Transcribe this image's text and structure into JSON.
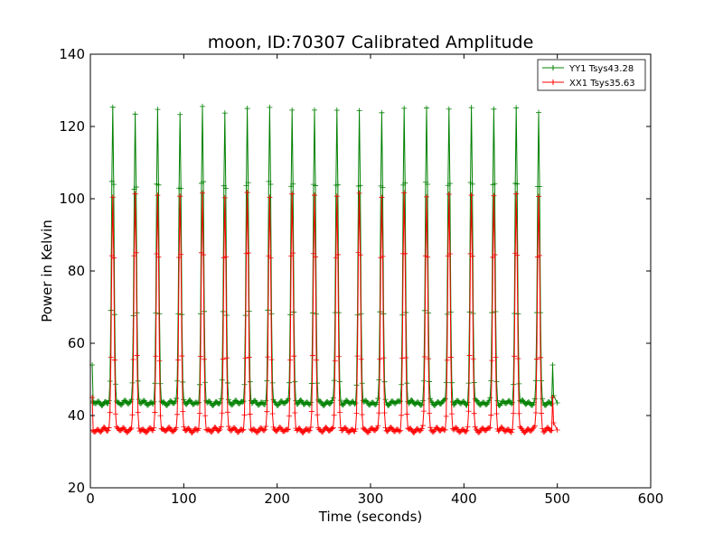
{
  "chart_data": {
    "type": "line",
    "title": "moon, ID:70307 Calibrated Amplitude",
    "xlabel": "Time (seconds)",
    "ylabel": "Power in Kelvin",
    "xlim": [
      0,
      600
    ],
    "ylim": [
      20,
      140
    ],
    "xticks": [
      0,
      100,
      200,
      300,
      400,
      500,
      600
    ],
    "yticks": [
      20,
      40,
      60,
      80,
      100,
      120,
      140
    ],
    "grid": false,
    "legend_position": "top-right",
    "peak_times": [
      24,
      48,
      72,
      96,
      120,
      144,
      168,
      192,
      216,
      240,
      264,
      288,
      312,
      336,
      360,
      384,
      408,
      432,
      456,
      480
    ],
    "series": [
      {
        "name": "YY1 Tsys43.28",
        "color": "#008000",
        "baseline": 43.5,
        "peak_values": [
          125,
          124,
          124,
          124,
          125,
          124,
          125,
          125,
          125,
          124,
          125,
          124,
          124,
          125,
          125,
          125,
          125,
          125,
          125,
          124
        ],
        "edge_points": [
          [
            2,
            54
          ],
          [
            495,
            54
          ],
          [
            500,
            43.5
          ]
        ]
      },
      {
        "name": "XX1 Tsys35.63",
        "color": "#ff0000",
        "baseline": 36,
        "peak_values": [
          101,
          101,
          101,
          101,
          101,
          101,
          101,
          101,
          101,
          101,
          101,
          101,
          101,
          101,
          101,
          101,
          101,
          101,
          101,
          101
        ],
        "edge_points": [
          [
            2,
            45
          ],
          [
            495,
            45
          ],
          [
            500,
            36
          ]
        ]
      }
    ]
  }
}
